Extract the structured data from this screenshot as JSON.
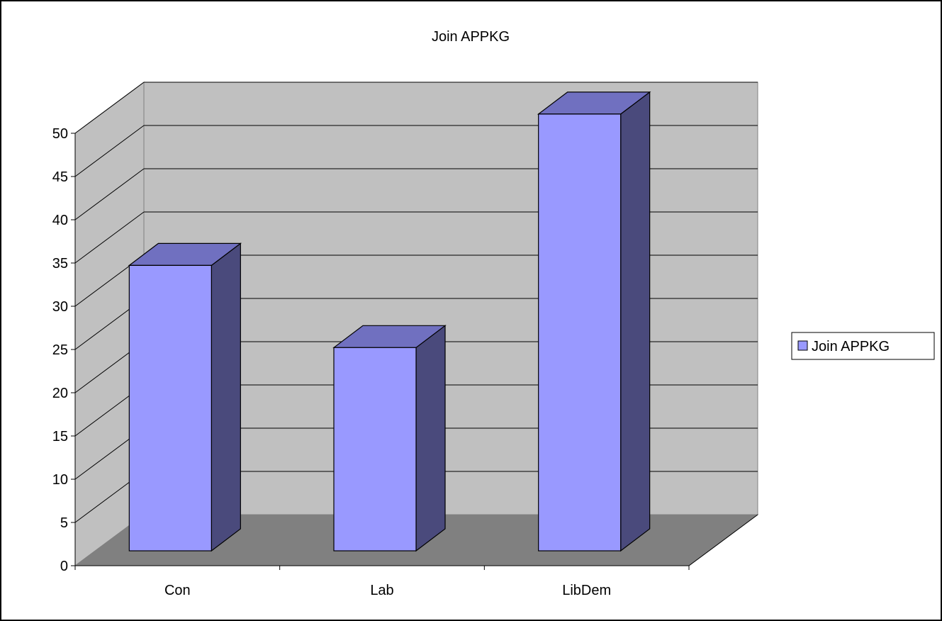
{
  "chart_data": {
    "type": "bar",
    "title": "Join APPKG",
    "xlabel": "",
    "ylabel": "",
    "categories": [
      "Con",
      "Lab",
      "LibDem"
    ],
    "series": [
      {
        "name": "Join APPKG",
        "values": [
          33,
          23.5,
          50.5
        ]
      }
    ],
    "ylim": [
      0,
      50
    ],
    "yticks": [
      0,
      5,
      10,
      15,
      20,
      25,
      30,
      35,
      40,
      45,
      50
    ],
    "grid": true,
    "legend_position": "right",
    "three_d": true
  },
  "colors": {
    "bar_front": "#9999ff",
    "bar_top": "#7070c0",
    "bar_side": "#4a4a7c",
    "wall": "#c0c0c0",
    "floor": "#808080"
  }
}
